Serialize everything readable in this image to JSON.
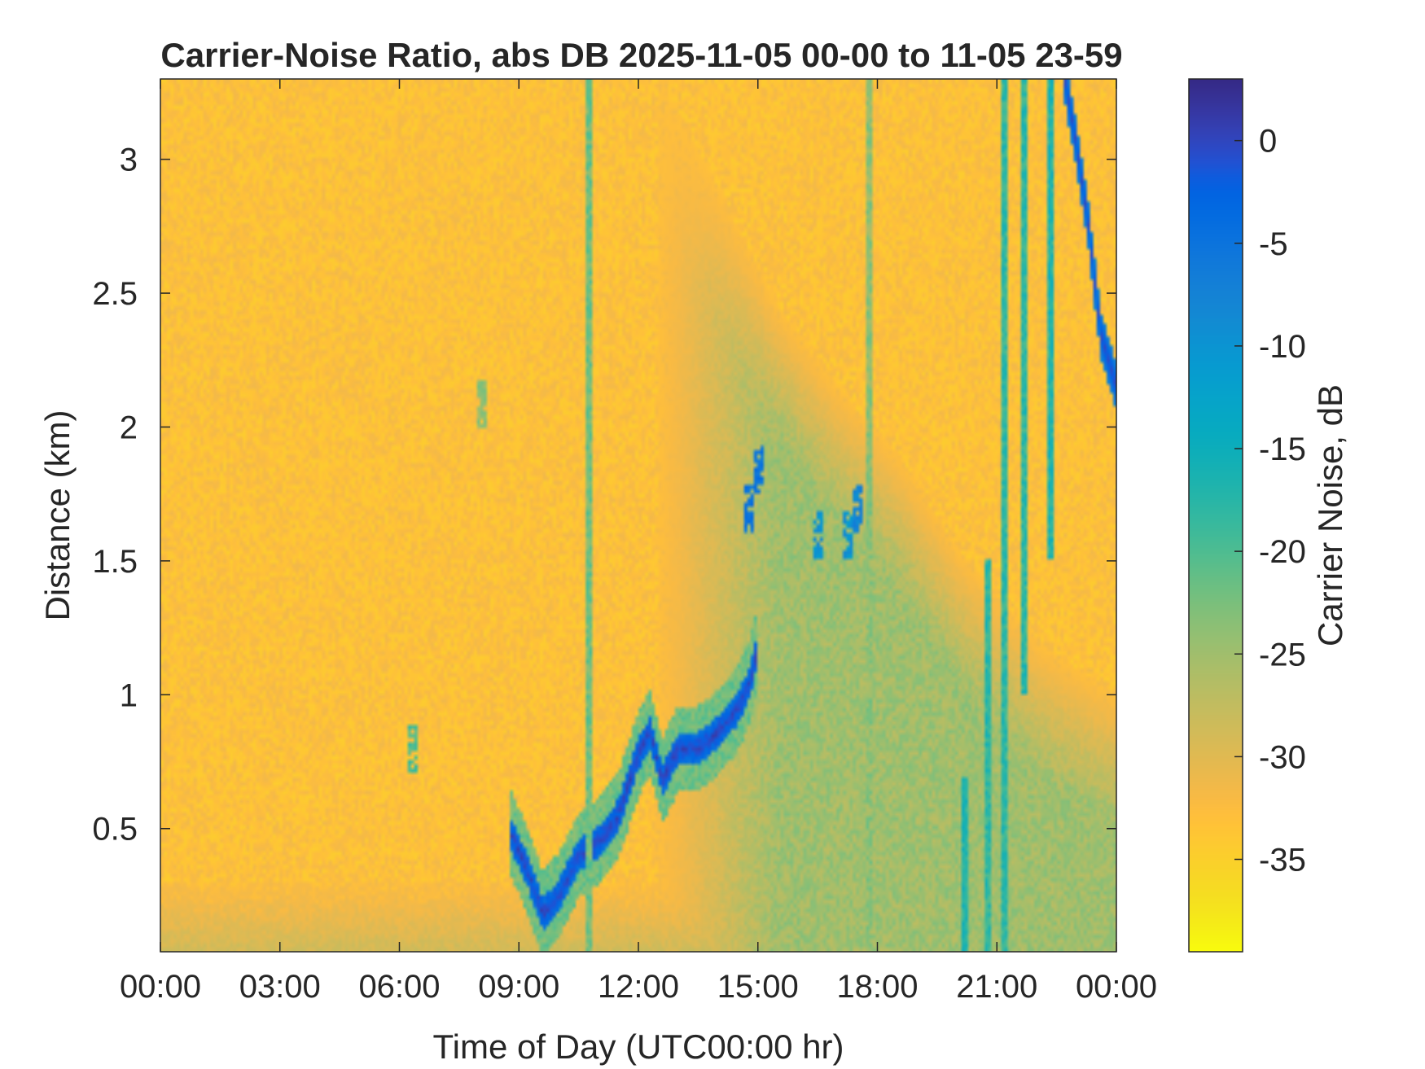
{
  "chart_data": {
    "type": "heatmap",
    "title": "Carrier-Noise Ratio, abs DB 2025-11-05 00-00 to 11-05 23-59",
    "xlabel": "Time of Day (UTC00:00 hr)",
    "ylabel": "Distance (km)",
    "colorbar_label": "Carrier Noise, dB",
    "colormap": "parula",
    "colormap_reversed": true,
    "x_unit": "hours",
    "xlim": [
      0,
      24
    ],
    "ylim": [
      0.04,
      3.3
    ],
    "clim": [
      -39.5,
      3
    ],
    "x_ticks": [
      0,
      3,
      6,
      9,
      12,
      15,
      18,
      21,
      24
    ],
    "x_tick_labels": [
      "00:00",
      "03:00",
      "06:00",
      "09:00",
      "12:00",
      "15:00",
      "18:00",
      "21:00",
      "00:00"
    ],
    "y_ticks": [
      0.5,
      1,
      1.5,
      2,
      2.5,
      3
    ],
    "y_tick_labels": [
      "0.5",
      "1",
      "1.5",
      "2",
      "2.5",
      "3"
    ],
    "colorbar_ticks": [
      0,
      -5,
      -10,
      -15,
      -20,
      -25,
      -30,
      -35
    ],
    "colorbar_tick_labels": [
      "0",
      "-5",
      "-10",
      "-15",
      "-20",
      "-25",
      "-30",
      "-35"
    ],
    "background_level_db": -33,
    "near_ground_layer": {
      "top_km": 0.3,
      "level_db": -28
    },
    "boundary_layer_trace": {
      "level_db": 0,
      "points": [
        {
          "x": 8.8,
          "y": 0.48
        },
        {
          "x": 9.2,
          "y": 0.35
        },
        {
          "x": 9.6,
          "y": 0.18
        },
        {
          "x": 10.0,
          "y": 0.25
        },
        {
          "x": 10.5,
          "y": 0.4
        },
        {
          "x": 11.0,
          "y": 0.45
        },
        {
          "x": 11.5,
          "y": 0.55
        },
        {
          "x": 12.0,
          "y": 0.78
        },
        {
          "x": 12.3,
          "y": 0.86
        },
        {
          "x": 12.6,
          "y": 0.68
        },
        {
          "x": 13.0,
          "y": 0.8
        },
        {
          "x": 13.5,
          "y": 0.8
        },
        {
          "x": 14.0,
          "y": 0.86
        },
        {
          "x": 14.5,
          "y": 0.95
        },
        {
          "x": 14.8,
          "y": 1.05
        },
        {
          "x": 15.0,
          "y": 1.18
        }
      ]
    },
    "aerosol_plume": {
      "level_db": -25,
      "points": [
        {
          "x": 12.5,
          "y": 3.3
        },
        {
          "x": 14.0,
          "y": 2.9
        },
        {
          "x": 15.5,
          "y": 2.45
        },
        {
          "x": 17.0,
          "y": 2.15
        },
        {
          "x": 18.5,
          "y": 1.9
        },
        {
          "x": 20.0,
          "y": 1.55
        },
        {
          "x": 22.0,
          "y": 1.2
        },
        {
          "x": 24.0,
          "y": 1.0
        }
      ]
    },
    "descending_trace": {
      "level_db": 0,
      "points": [
        {
          "x": 22.7,
          "y": 3.3
        },
        {
          "x": 23.0,
          "y": 3.05
        },
        {
          "x": 23.3,
          "y": 2.75
        },
        {
          "x": 23.6,
          "y": 2.35
        },
        {
          "x": 24.0,
          "y": 2.15
        }
      ]
    },
    "vertical_streaks": [
      {
        "x": 10.7,
        "y0": 0.04,
        "y1": 3.3,
        "level_db": -22
      },
      {
        "x": 17.7,
        "y0": 0.04,
        "y1": 3.3,
        "level_db": -24
      },
      {
        "x": 20.1,
        "y0": 0.04,
        "y1": 0.7,
        "level_db": -17
      },
      {
        "x": 20.7,
        "y0": 0.04,
        "y1": 1.5,
        "level_db": -18
      },
      {
        "x": 21.1,
        "y0": 0.04,
        "y1": 3.3,
        "level_db": -18
      },
      {
        "x": 21.6,
        "y0": 1.0,
        "y1": 3.3,
        "level_db": -18
      },
      {
        "x": 22.3,
        "y0": 1.5,
        "y1": 3.3,
        "level_db": -17
      }
    ],
    "isolated_patches": [
      {
        "x": 6.3,
        "y": 0.8,
        "level_db": -20
      },
      {
        "x": 8.0,
        "y": 2.1,
        "level_db": -24
      },
      {
        "x": 14.7,
        "y": 1.7,
        "level_db": -5
      },
      {
        "x": 15.0,
        "y": 1.85,
        "level_db": -5
      },
      {
        "x": 16.5,
        "y": 1.6,
        "level_db": -10
      },
      {
        "x": 17.2,
        "y": 1.6,
        "level_db": -10
      },
      {
        "x": 17.5,
        "y": 1.7,
        "level_db": -8
      }
    ]
  }
}
